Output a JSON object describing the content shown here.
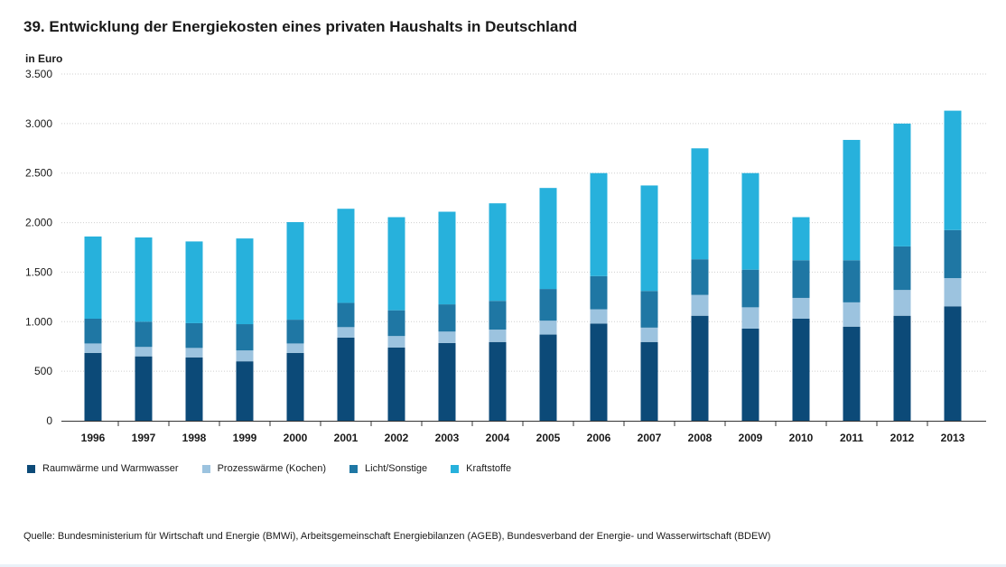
{
  "page": {
    "title": "39. Entwicklung der Energiekosten eines privaten Haushalts in Deutschland",
    "source": "Quelle: Bundesministerium für Wirtschaft und Energie (BMWi), Arbeitsgemeinschaft Energiebilanzen (AGEB), Bundesverband der Energie- und Wasserwirtschaft (BDEW)"
  },
  "chart_data": {
    "type": "bar",
    "stacked": true,
    "title": "39. Entwicklung der Energiekosten eines privaten Haushalts in Deutschland",
    "xlabel": "",
    "ylabel": "in Euro",
    "ylim": [
      0,
      3500
    ],
    "yticks": [
      0,
      500,
      1000,
      1500,
      2000,
      2500,
      3000,
      3500
    ],
    "ytick_labels": [
      "0",
      "500",
      "1.000",
      "1.500",
      "2.000",
      "2.500",
      "3.000",
      "3.500"
    ],
    "grid": true,
    "legend_position": "bottom-left",
    "categories": [
      "1996",
      "1997",
      "1998",
      "1999",
      "2000",
      "2001",
      "2002",
      "2003",
      "2004",
      "2005",
      "2006",
      "2007",
      "2008",
      "2009",
      "2010",
      "2011",
      "2012",
      "2013"
    ],
    "series": [
      {
        "name": "Raumwärme und Warmwasser",
        "color": "#0c4a78",
        "values": [
          685,
          650,
          640,
          600,
          685,
          840,
          740,
          785,
          795,
          870,
          980,
          795,
          1060,
          930,
          1030,
          950,
          1060,
          1155
        ]
      },
      {
        "name": "Prozesswärme (Kochen)",
        "color": "#9cc3df",
        "values": [
          95,
          95,
          95,
          110,
          95,
          105,
          115,
          115,
          125,
          140,
          145,
          145,
          210,
          215,
          210,
          245,
          260,
          285
        ]
      },
      {
        "name": "Licht/Sonstige",
        "color": "#1f77a4",
        "values": [
          250,
          255,
          250,
          265,
          240,
          245,
          260,
          275,
          290,
          320,
          335,
          370,
          360,
          380,
          380,
          425,
          440,
          485
        ]
      },
      {
        "name": "Kraftstoffe",
        "color": "#27b1dc",
        "values": [
          830,
          850,
          825,
          865,
          985,
          950,
          940,
          935,
          985,
          1020,
          1040,
          1065,
          1120,
          975,
          435,
          1215,
          1240,
          1205
        ]
      }
    ]
  }
}
